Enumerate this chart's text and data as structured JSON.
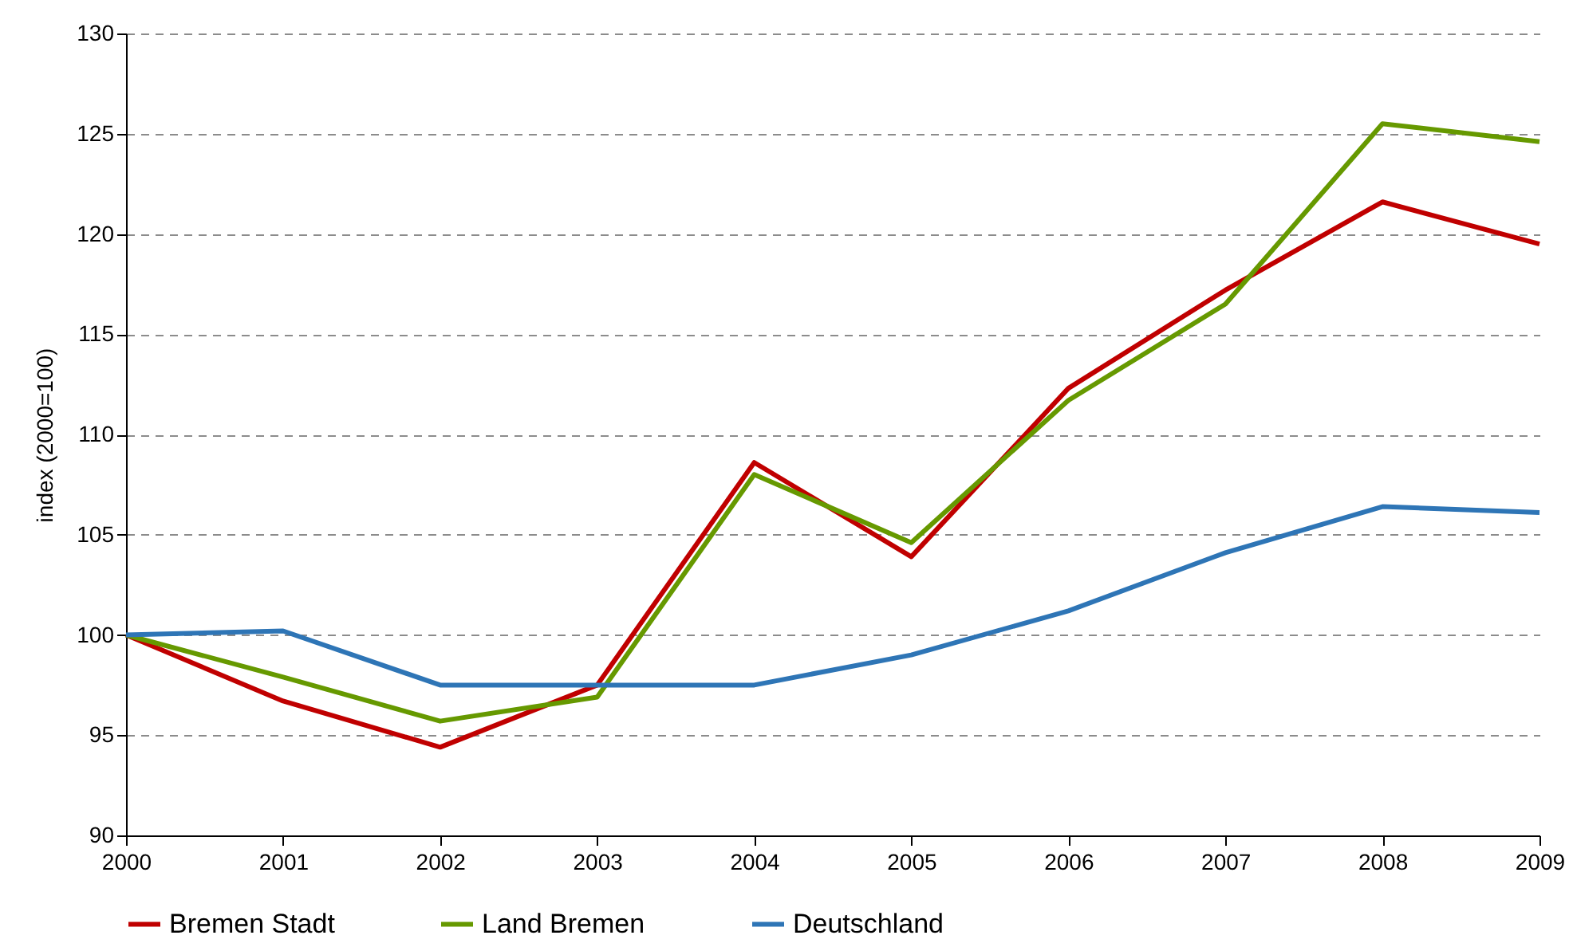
{
  "chart_data": {
    "type": "line",
    "ylabel": "index (2000=100)",
    "x": [
      2000,
      2001,
      2002,
      2003,
      2004,
      2005,
      2006,
      2007,
      2008,
      2009
    ],
    "xlim": [
      2000,
      2009
    ],
    "xticks": [
      2000,
      2001,
      2002,
      2003,
      2004,
      2005,
      2006,
      2007,
      2008,
      2009
    ],
    "ylim": [
      90,
      130
    ],
    "yticks": [
      90,
      95,
      100,
      105,
      110,
      115,
      120,
      125,
      130
    ],
    "grid": "y",
    "legend": "bottom",
    "marker": "none",
    "line_style": "solid",
    "series": [
      {
        "name": "Bremen Stadt",
        "color": "#c00000",
        "values": [
          100,
          96.7,
          94.4,
          97.5,
          108.6,
          103.9,
          112.3,
          117.2,
          121.6,
          119.5
        ]
      },
      {
        "name": "Land Bremen",
        "color": "#669900",
        "values": [
          100,
          97.9,
          95.7,
          96.9,
          108.0,
          104.6,
          111.7,
          116.5,
          125.5,
          124.6
        ]
      },
      {
        "name": "Deutschland",
        "color": "#2e75b6",
        "values": [
          100,
          100.2,
          97.5,
          97.5,
          97.5,
          99.0,
          101.2,
          104.1,
          106.4,
          106.1
        ]
      }
    ]
  }
}
